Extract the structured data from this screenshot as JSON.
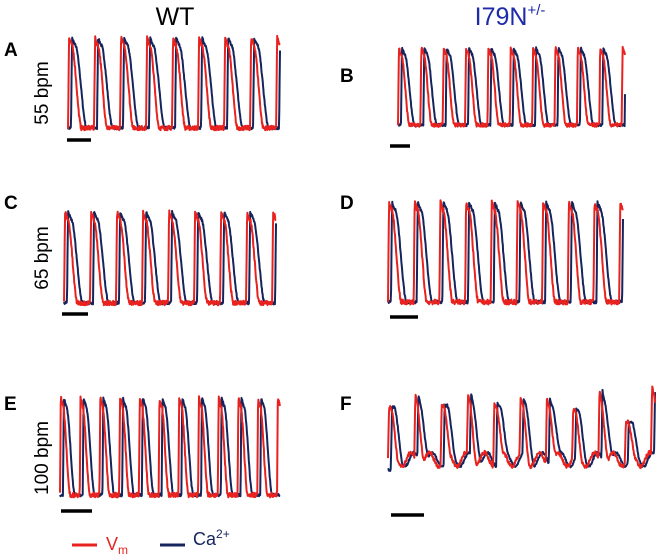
{
  "figure": {
    "columns": [
      {
        "title": "WT",
        "title_sup": "",
        "color": "#000000"
      },
      {
        "title": "I79N",
        "title_sup": "+/-",
        "color": "#1f2aa8"
      }
    ],
    "rows": [
      {
        "rate_label": "55 bpm"
      },
      {
        "rate_label": "65 bpm"
      },
      {
        "rate_label": "100 bpm"
      }
    ],
    "panel_letters": [
      "A",
      "B",
      "C",
      "D",
      "E",
      "F"
    ],
    "legend": [
      {
        "symbol": "V",
        "subscript": "m",
        "sup": "",
        "color": "#e8231f"
      },
      {
        "symbol": "Ca",
        "subscript": "",
        "sup": "2+",
        "color": "#14245c"
      }
    ]
  },
  "chart_data": [
    {
      "type": "line",
      "panel": "A",
      "genotype": "WT",
      "rate_bpm": 55,
      "peaks": 8,
      "series": [
        {
          "name": "Vm",
          "color": "#e8231f"
        },
        {
          "name": "Ca2+",
          "color": "#14245c"
        }
      ]
    },
    {
      "type": "line",
      "panel": "B",
      "genotype": "I79N+/-",
      "rate_bpm": 55,
      "peaks": 10,
      "series": [
        {
          "name": "Vm",
          "color": "#e8231f"
        },
        {
          "name": "Ca2+",
          "color": "#14245c"
        }
      ]
    },
    {
      "type": "line",
      "panel": "C",
      "genotype": "WT",
      "rate_bpm": 65,
      "peaks": 8,
      "series": [
        {
          "name": "Vm",
          "color": "#e8231f"
        },
        {
          "name": "Ca2+",
          "color": "#14245c"
        }
      ]
    },
    {
      "type": "line",
      "panel": "D",
      "genotype": "I79N+/-",
      "rate_bpm": 65,
      "peaks": 9,
      "series": [
        {
          "name": "Vm",
          "color": "#e8231f"
        },
        {
          "name": "Ca2+",
          "color": "#14245c"
        }
      ]
    },
    {
      "type": "line",
      "panel": "E",
      "genotype": "WT",
      "rate_bpm": 100,
      "peaks": 11,
      "series": [
        {
          "name": "Vm",
          "color": "#e8231f"
        },
        {
          "name": "Ca2+",
          "color": "#14245c"
        }
      ]
    },
    {
      "type": "line",
      "panel": "F",
      "genotype": "I79N+/-",
      "rate_bpm": 100,
      "peaks": 10,
      "irregular": true,
      "series": [
        {
          "name": "Vm",
          "color": "#e8231f"
        },
        {
          "name": "Ca2+",
          "color": "#14245c"
        }
      ]
    }
  ]
}
